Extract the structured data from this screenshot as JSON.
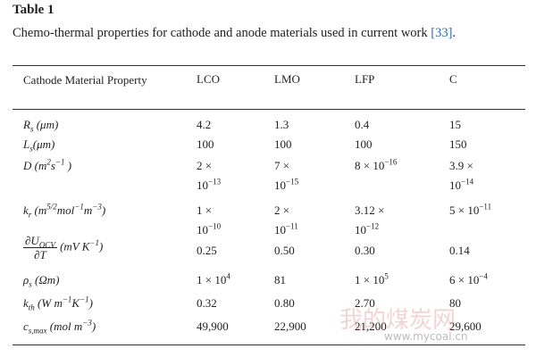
{
  "header": {
    "title": "Table 1",
    "caption": "Chemo-thermal properties for cathode and anode materials used in current work",
    "citation": "[33]",
    "end": "."
  },
  "table": {
    "columns": [
      "Cathode Material Property",
      "LCO",
      "LMO",
      "LFP",
      "C"
    ],
    "rows": [
      {
        "label": [
          "R",
          {
            "sub": "s"
          },
          " (μm)"
        ],
        "cells": [
          [
            [
              "4.2"
            ]
          ],
          [
            [
              "1.3"
            ]
          ],
          [
            [
              "0.4"
            ]
          ],
          [
            [
              "15"
            ]
          ]
        ]
      },
      {
        "label": [
          "L",
          {
            "sub": "s"
          },
          "(μm)"
        ],
        "cells": [
          [
            [
              "100"
            ]
          ],
          [
            [
              "100"
            ]
          ],
          [
            [
              "100"
            ]
          ],
          [
            [
              "150"
            ]
          ]
        ]
      },
      {
        "label": [
          "D (m",
          {
            "sup": "2"
          },
          "s",
          {
            "sup": "−1"
          },
          " )"
        ],
        "cells": [
          [
            [
              "2 ×"
            ],
            [
              "10",
              {
                "sup": "−13"
              }
            ]
          ],
          [
            [
              "7 ×"
            ],
            [
              "10",
              {
                "sup": "−15"
              }
            ]
          ],
          [
            [
              "8 × 10",
              {
                "sup": "−16"
              }
            ]
          ],
          [
            [
              "3.9 ×"
            ],
            [
              "10",
              {
                "sup": "−14"
              }
            ]
          ]
        ]
      },
      {
        "label": [
          "k",
          {
            "sub": "r"
          },
          " (m",
          {
            "sup": "5/2"
          },
          "mol",
          {
            "sup": "−1"
          },
          "m",
          {
            "sup": "−3"
          },
          ")"
        ],
        "cells": [
          [
            [
              "1 ×"
            ],
            [
              "10",
              {
                "sup": "−10"
              }
            ]
          ],
          [
            [
              "2 ×"
            ],
            [
              "10",
              {
                "sup": "−11"
              }
            ]
          ],
          [
            [
              "3.12 ×"
            ],
            [
              "10",
              {
                "sup": "−12"
              }
            ]
          ],
          [
            [
              "5 × 10",
              {
                "sup": "−11"
              }
            ]
          ]
        ]
      },
      {
        "label": [
          {
            "num": [
              "∂U",
              {
                "sub": "OCV"
              }
            ],
            "den": [
              "∂T"
            ]
          },
          " (mV K",
          {
            "sup": "−1"
          },
          ")"
        ],
        "cells": [
          [
            [
              "0.25"
            ]
          ],
          [
            [
              "0.50"
            ]
          ],
          [
            [
              "0.30"
            ]
          ],
          [
            [
              "0.14"
            ]
          ]
        ]
      },
      {
        "label": [
          "ρ",
          {
            "sub": "s"
          },
          " (Ωm)"
        ],
        "cells": [
          [
            [
              "1 × 10",
              {
                "sup": "4"
              }
            ]
          ],
          [
            [
              "81"
            ]
          ],
          [
            [
              "1 × 10",
              {
                "sup": "5"
              }
            ]
          ],
          [
            [
              "6 × 10",
              {
                "sup": "−4"
              }
            ]
          ]
        ]
      },
      {
        "label": [
          "k",
          {
            "sub": "th"
          },
          " (W m",
          {
            "sup": "−1"
          },
          "K",
          {
            "sup": "−1"
          },
          ")"
        ],
        "cells": [
          [
            [
              "0.32"
            ]
          ],
          [
            [
              "0.80"
            ]
          ],
          [
            [
              "2.70"
            ]
          ],
          [
            [
              "80"
            ]
          ]
        ]
      },
      {
        "label": [
          "c",
          {
            "sub": "s,max"
          },
          " (mol m",
          {
            "sup": "−3"
          },
          ")"
        ],
        "cells": [
          [
            [
              "49,900"
            ]
          ],
          [
            [
              "22,900"
            ]
          ],
          [
            [
              "21,200"
            ]
          ],
          [
            [
              "29,600"
            ]
          ]
        ]
      }
    ]
  },
  "watermark": {
    "name": "我的煤炭网",
    "url": "www.mycoal.cn"
  }
}
